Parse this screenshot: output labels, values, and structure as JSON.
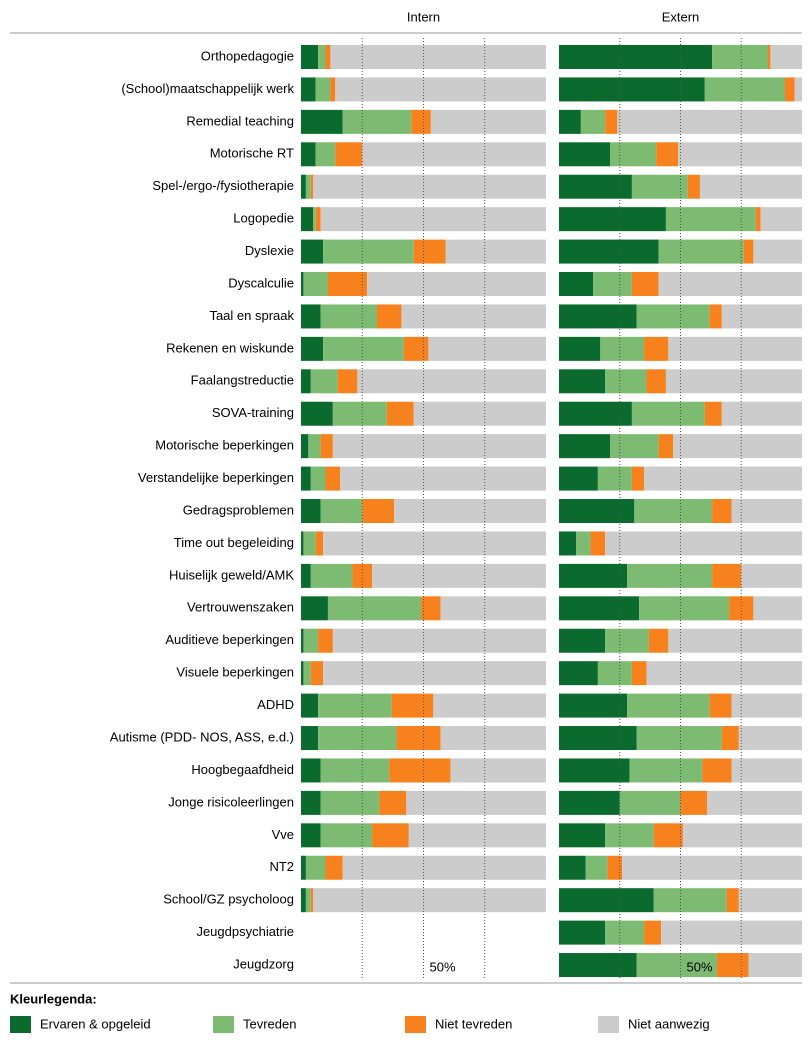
{
  "chart_data": {
    "type": "bar",
    "stacked": true,
    "orientation": "horizontal",
    "categories": [
      "Orthopedagogie",
      "(School)maatschappelijk werk",
      "Remedial teaching",
      "Motorische RT",
      "Spel-/ergo-/fysiotherapie",
      "Logopedie",
      "Dyslexie",
      "Dyscalculie",
      "Taal en spraak",
      "Rekenen en wiskunde",
      "Faalangstreductie",
      "SOVA-training",
      "Motorische beperkingen",
      "Verstandelijke beperkingen",
      "Gedragsproblemen",
      "Time out begeleiding",
      "Huiselijk geweld/AMK",
      "Vertrouwenszaken",
      "Auditieve beperkingen",
      "Visuele beperkingen",
      "ADHD",
      "Autisme (PDD- NOS, ASS, e.d.)",
      "Hoogbegaafdheid",
      "Jonge risicoleerlingen",
      "Vve",
      "NT2",
      "School/GZ psycholoog",
      "Jeugdpsychiatrie",
      "Jeugdzorg"
    ],
    "legend_title": "Kleurlegenda:",
    "series": [
      {
        "name": "Ervaren & opgeleid",
        "color": "#0b6b2f"
      },
      {
        "name": "Tevreden",
        "color": "#7dbb73"
      },
      {
        "name": "Niet tevreden",
        "color": "#f7811c"
      },
      {
        "name": "Niet aanwezig",
        "color": "#cccccc"
      }
    ],
    "panels": [
      {
        "title": "Intern",
        "xlim": [
          0,
          100
        ],
        "gridlines": [
          25,
          75
        ],
        "xticks": [
          {
            "value": 50,
            "label": "50%"
          }
        ],
        "series": [
          [
            7,
            6,
            17,
            6,
            2,
            5,
            9,
            1,
            8,
            9,
            4,
            13,
            3,
            4,
            8,
            1,
            4,
            11,
            1,
            1,
            7,
            7,
            8,
            8,
            8,
            2,
            2,
            null,
            null
          ],
          [
            3,
            6,
            28,
            8,
            2,
            1,
            37,
            10,
            23,
            33,
            11,
            22,
            5,
            6,
            17,
            5,
            17,
            38,
            6,
            3,
            30,
            32,
            28,
            24,
            21,
            8,
            2,
            null,
            null
          ],
          [
            2,
            2,
            8,
            11,
            1,
            2,
            13,
            16,
            10,
            10,
            8,
            11,
            5,
            6,
            13,
            3,
            8,
            8,
            6,
            5,
            17,
            18,
            25,
            11,
            15,
            7,
            1,
            null,
            null
          ],
          [
            88,
            86,
            47,
            75,
            95,
            92,
            41,
            73,
            59,
            48,
            77,
            54,
            87,
            84,
            62,
            91,
            71,
            43,
            87,
            91,
            46,
            43,
            39,
            57,
            56,
            83,
            95,
            null,
            null
          ]
        ]
      },
      {
        "title": "Extern",
        "xlim": [
          0,
          100
        ],
        "gridlines": [
          25,
          75
        ],
        "xticks": [
          {
            "value": 50,
            "label": "50%"
          }
        ],
        "series": [
          [
            63,
            60,
            9,
            21,
            30,
            44,
            41,
            14,
            32,
            17,
            19,
            30,
            21,
            16,
            31,
            7,
            28,
            33,
            19,
            16,
            28,
            32,
            29,
            25,
            19,
            11,
            39,
            19,
            32
          ],
          [
            23,
            33,
            10,
            19,
            23,
            37,
            35,
            16,
            30,
            18,
            17,
            30,
            20,
            14,
            32,
            6,
            35,
            37,
            18,
            14,
            34,
            35,
            30,
            25,
            20,
            9,
            30,
            16,
            33
          ],
          [
            1,
            4,
            5,
            9,
            5,
            2,
            4,
            11,
            5,
            10,
            8,
            7,
            6,
            5,
            8,
            6,
            12,
            10,
            8,
            6,
            9,
            7,
            12,
            11,
            12,
            6,
            5,
            7,
            13
          ],
          [
            13,
            3,
            76,
            51,
            42,
            17,
            20,
            59,
            33,
            55,
            56,
            33,
            53,
            65,
            29,
            81,
            25,
            20,
            55,
            64,
            29,
            26,
            29,
            39,
            49,
            74,
            26,
            58,
            22
          ]
        ]
      }
    ]
  }
}
